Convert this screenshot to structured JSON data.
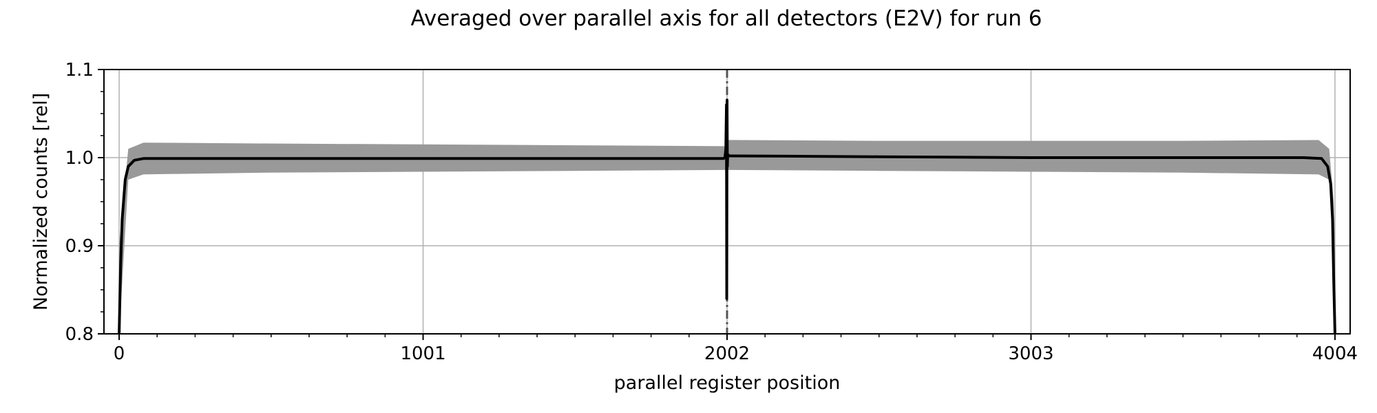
{
  "chart_data": {
    "type": "line",
    "title": "Averaged over parallel axis for all detectors (E2V) for run 6",
    "xlabel": "parallel register position",
    "ylabel": "Normalized counts [rel]",
    "xlim": [
      -50,
      4054
    ],
    "ylim": [
      0.8,
      1.1
    ],
    "x_ticks": [
      0,
      1001,
      2002,
      3003,
      4004
    ],
    "x_tick_labels": [
      "0",
      "1001",
      "2002",
      "3003",
      "4004"
    ],
    "y_ticks": [
      0.8,
      0.9,
      1.0,
      1.1
    ],
    "y_tick_labels": [
      "0.8",
      "0.9",
      "1.0",
      "1.1"
    ],
    "x_minor_step": 250.25,
    "y_minor_step": 0.025,
    "grid": true,
    "colors": {
      "mean_line": "#000000",
      "spread_band": "#999999",
      "divider": "#555555",
      "grid": "#b0b0b0"
    },
    "series": [
      {
        "x": [
          0,
          5,
          10,
          20,
          30,
          50,
          80,
          120,
          200,
          500,
          1000,
          1500,
          1980,
          1990,
          1995,
          1998,
          2000,
          2001,
          2002,
          2003,
          2004,
          2006,
          2010,
          2015,
          2020,
          2500,
          3000,
          3500,
          3900,
          3960,
          3980,
          3990,
          3996,
          4000,
          4004
        ],
        "values": [
          0.8,
          0.88,
          0.93,
          0.975,
          0.99,
          0.997,
          0.999,
          0.999,
          0.999,
          0.999,
          0.999,
          0.999,
          0.999,
          0.999,
          1.0,
          1.01,
          1.06,
          0.84,
          1.065,
          0.99,
          1.002,
          1.003,
          1.002,
          1.002,
          1.002,
          1.001,
          1.0,
          1.0,
          1.0,
          0.999,
          0.99,
          0.97,
          0.93,
          0.86,
          0.8
        ]
      },
      {
        "x": [
          0,
          30,
          80,
          500,
          1000,
          1500,
          1995,
          2005,
          2500,
          3000,
          3500,
          3950,
          3985,
          4000,
          4004
        ],
        "upper": [
          0.9,
          1.01,
          1.017,
          1.016,
          1.015,
          1.014,
          1.013,
          1.02,
          1.019,
          1.019,
          1.019,
          1.02,
          1.01,
          0.95,
          0.9
        ],
        "lower": [
          0.8,
          0.975,
          0.981,
          0.983,
          0.984,
          0.985,
          0.986,
          0.986,
          0.985,
          0.984,
          0.983,
          0.981,
          0.975,
          0.9,
          0.8
        ]
      }
    ]
  }
}
